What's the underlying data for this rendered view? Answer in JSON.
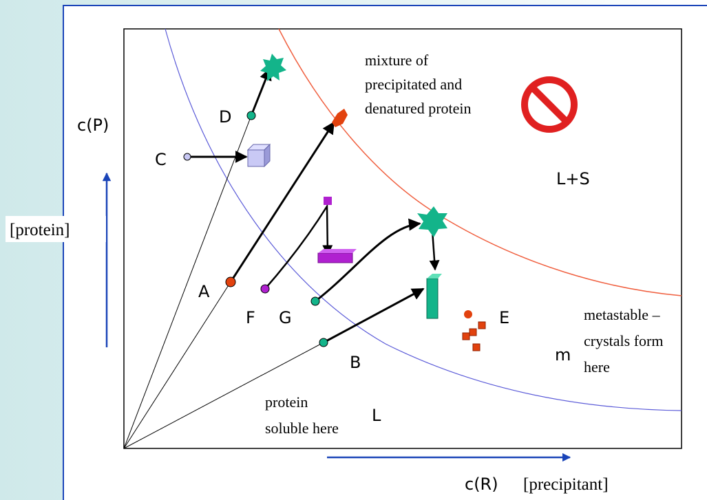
{
  "axes": {
    "y_label": "c(P)",
    "y_caption": "[protein]",
    "x_label": "c(R)",
    "x_caption": "[precipitant]"
  },
  "regions": {
    "precipitate": {
      "lines": [
        "mixture of",
        "precipitated and",
        "denatured protein"
      ],
      "label": "L+S"
    },
    "metastable": {
      "lines": [
        "metastable –",
        "crystals form",
        "here"
      ],
      "label": "m"
    },
    "soluble": {
      "lines": [
        "protein",
        "soluble here"
      ],
      "label": "L"
    }
  },
  "points": {
    "A": "A",
    "B": "B",
    "C": "C",
    "D": "D",
    "E": "E",
    "F": "F",
    "G": "G"
  }
}
